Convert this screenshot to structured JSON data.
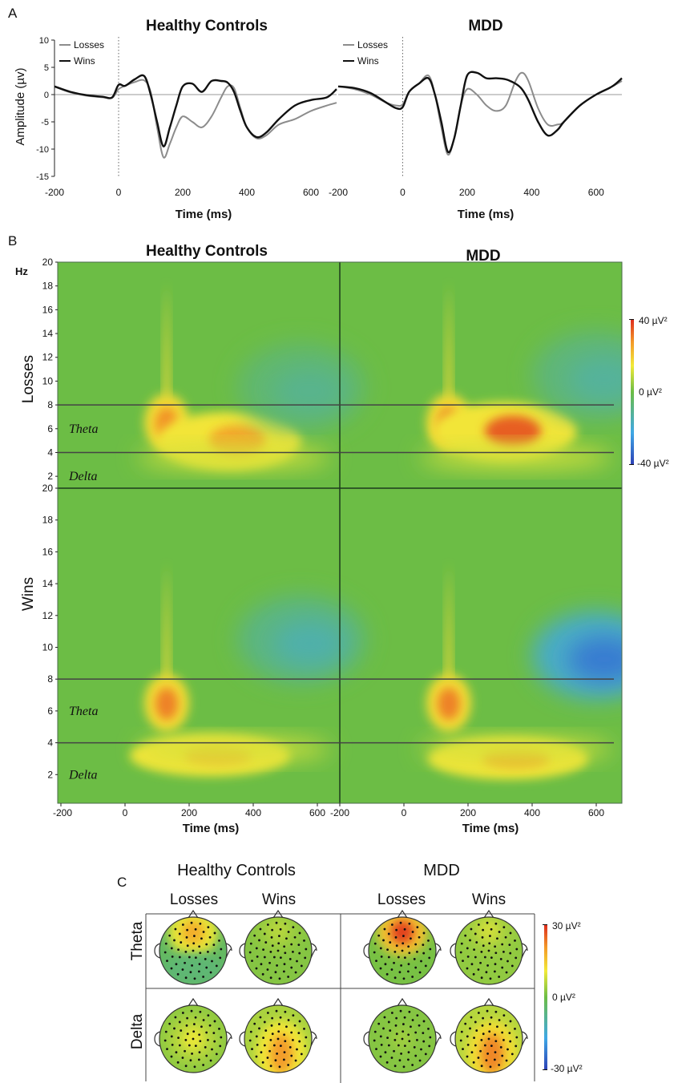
{
  "figure": {
    "panel_a_label": "A",
    "panel_b_label": "B",
    "panel_c_label": "C"
  },
  "chart_data": [
    {
      "type": "line",
      "panel": "A",
      "title": "Healthy Controls",
      "xlabel": "Time (ms)",
      "ylabel": "Amplitude (µv)",
      "xlim": [
        -200,
        680
      ],
      "ylim": [
        -15,
        10
      ],
      "x_ticks": [
        "-200",
        "0",
        "200",
        "400",
        "600"
      ],
      "y_ticks": [
        "10",
        "5",
        "0",
        "-5",
        "-10",
        "-15"
      ],
      "legend_position": "top-left",
      "series": [
        {
          "name": "Losses",
          "color": "#8c8c8c",
          "x": [
            -200,
            -150,
            -100,
            -50,
            -20,
            0,
            20,
            50,
            80,
            100,
            120,
            140,
            160,
            180,
            200,
            230,
            260,
            290,
            320,
            340,
            360,
            380,
            400,
            430,
            460,
            500,
            550,
            600,
            650,
            680
          ],
          "y": [
            1.5,
            0.4,
            -0.2,
            -0.5,
            -0.6,
            1.0,
            1.6,
            2.3,
            2.6,
            0.5,
            -6.0,
            -11.5,
            -9.0,
            -6.0,
            -4.0,
            -5.0,
            -6.0,
            -4.0,
            -0.5,
            1.5,
            1.2,
            -2.5,
            -6.0,
            -8.0,
            -7.5,
            -5.5,
            -4.5,
            -3.0,
            -2.0,
            -1.5
          ]
        },
        {
          "name": "Wins",
          "color": "#111111",
          "x": [
            -200,
            -150,
            -100,
            -50,
            -20,
            0,
            20,
            50,
            80,
            100,
            120,
            140,
            160,
            180,
            200,
            230,
            260,
            290,
            320,
            340,
            360,
            380,
            400,
            430,
            460,
            500,
            550,
            600,
            650,
            680
          ],
          "y": [
            1.5,
            0.5,
            -0.1,
            -0.4,
            -0.5,
            1.8,
            1.6,
            2.8,
            3.4,
            0.0,
            -5.0,
            -9.5,
            -6.0,
            -2.0,
            1.5,
            2.0,
            0.5,
            2.5,
            2.5,
            2.2,
            0.5,
            -3.0,
            -6.0,
            -7.8,
            -7.0,
            -4.5,
            -2.0,
            -1.0,
            -0.5,
            1.0
          ]
        }
      ]
    },
    {
      "type": "line",
      "panel": "A",
      "title": "MDD",
      "xlabel": "Time (ms)",
      "xlim": [
        -200,
        680
      ],
      "ylim": [
        -15,
        10
      ],
      "x_ticks": [
        "-200",
        "0",
        "200",
        "400",
        "600"
      ],
      "legend_position": "top-left",
      "series": [
        {
          "name": "Losses",
          "color": "#8c8c8c",
          "x": [
            -200,
            -150,
            -100,
            -50,
            -20,
            0,
            20,
            50,
            80,
            100,
            120,
            140,
            160,
            180,
            200,
            230,
            260,
            290,
            320,
            350,
            370,
            390,
            420,
            450,
            480,
            500,
            550,
            600,
            650,
            680
          ],
          "y": [
            1.5,
            1.0,
            0.0,
            -1.5,
            -2.0,
            -1.8,
            0.5,
            2.0,
            3.5,
            0.0,
            -6.0,
            -11.0,
            -8.0,
            -2.0,
            1.0,
            0.0,
            -2.0,
            -3.0,
            -2.0,
            2.5,
            4.0,
            2.5,
            -2.5,
            -5.5,
            -5.5,
            -5.0,
            -2.0,
            0.0,
            1.5,
            2.5
          ]
        },
        {
          "name": "Wins",
          "color": "#111111",
          "x": [
            -200,
            -150,
            -100,
            -50,
            -20,
            0,
            20,
            50,
            80,
            100,
            120,
            140,
            160,
            180,
            200,
            230,
            260,
            290,
            320,
            350,
            370,
            390,
            420,
            450,
            480,
            500,
            550,
            600,
            650,
            680
          ],
          "y": [
            1.5,
            1.2,
            0.3,
            -1.5,
            -2.5,
            -2.3,
            0.5,
            2.0,
            3.0,
            0.0,
            -5.0,
            -10.5,
            -8.0,
            -2.0,
            3.5,
            4.0,
            3.0,
            3.0,
            2.8,
            2.0,
            1.0,
            -1.0,
            -5.0,
            -7.5,
            -6.5,
            -5.0,
            -2.0,
            0.0,
            1.5,
            3.0
          ]
        }
      ]
    },
    {
      "type": "heatmap",
      "panel": "B",
      "columns": [
        "Healthy Controls",
        "MDD"
      ],
      "rows": [
        "Losses",
        "Wins"
      ],
      "xlabel": "Time (ms)",
      "ylabel_unit": "Hz",
      "xlim": [
        -200,
        680
      ],
      "ylim": [
        1,
        20
      ],
      "x_ticks": [
        "-200",
        "0",
        "200",
        "400",
        "600"
      ],
      "y_ticks": [
        "20",
        "18",
        "16",
        "14",
        "12",
        "10",
        "8",
        "6",
        "4",
        "2"
      ],
      "band_lines_hz": [
        8,
        4
      ],
      "band_labels": [
        "Theta",
        "Delta"
      ],
      "colorbar": {
        "max": "40 µV²",
        "mid": "0 µV²",
        "min": "-40 µV²",
        "range": [
          -40,
          40
        ]
      },
      "peaks_uv2": [
        {
          "group": "Healthy Controls",
          "condition": "Losses",
          "time_ms": 140,
          "hz": 6.5,
          "value": 28
        },
        {
          "group": "Healthy Controls",
          "condition": "Losses",
          "time_ms": 360,
          "hz": 5.0,
          "value": 25
        },
        {
          "group": "Healthy Controls",
          "condition": "Losses",
          "time_ms": 560,
          "hz": 9.5,
          "value": -10
        },
        {
          "group": "MDD",
          "condition": "Losses",
          "time_ms": 140,
          "hz": 6.5,
          "value": 30
        },
        {
          "group": "MDD",
          "condition": "Losses",
          "time_ms": 340,
          "hz": 5.8,
          "value": 34
        },
        {
          "group": "MDD",
          "condition": "Losses",
          "time_ms": 600,
          "hz": 10.5,
          "value": -12
        },
        {
          "group": "Healthy Controls",
          "condition": "Wins",
          "time_ms": 140,
          "hz": 6.5,
          "value": 30
        },
        {
          "group": "Healthy Controls",
          "condition": "Wins",
          "time_ms": 300,
          "hz": 3.2,
          "value": 22
        },
        {
          "group": "Healthy Controls",
          "condition": "Wins",
          "time_ms": 560,
          "hz": 10.5,
          "value": -14
        },
        {
          "group": "MDD",
          "condition": "Wins",
          "time_ms": 140,
          "hz": 6.5,
          "value": 30
        },
        {
          "group": "MDD",
          "condition": "Wins",
          "time_ms": 350,
          "hz": 3.0,
          "value": 24
        },
        {
          "group": "MDD",
          "condition": "Wins",
          "time_ms": 600,
          "hz": 9.5,
          "value": -30
        }
      ]
    },
    {
      "type": "heatmap",
      "panel": "C",
      "subtype": "scalp topography",
      "groups": [
        "Healthy Controls",
        "MDD"
      ],
      "conditions": [
        "Losses",
        "Wins"
      ],
      "bands": [
        "Theta",
        "Delta"
      ],
      "colorbar": {
        "max": "30 µV²",
        "mid": "0 µV²",
        "min": "-30 µV²",
        "range": [
          -30,
          30
        ]
      },
      "maps": [
        {
          "group": "Healthy Controls",
          "condition": "Losses",
          "band": "Theta",
          "peak_value": 18,
          "peak_location": "frontal-central",
          "background_value": -3
        },
        {
          "group": "Healthy Controls",
          "condition": "Wins",
          "band": "Theta",
          "peak_value": 6,
          "peak_location": "frontal",
          "background_value": 2
        },
        {
          "group": "MDD",
          "condition": "Losses",
          "band": "Theta",
          "peak_value": 28,
          "peak_location": "frontal-central",
          "background_value": 1
        },
        {
          "group": "MDD",
          "condition": "Wins",
          "band": "Theta",
          "peak_value": 8,
          "peak_location": "frontal",
          "background_value": 3
        },
        {
          "group": "Healthy Controls",
          "condition": "Losses",
          "band": "Delta",
          "peak_value": 10,
          "peak_location": "central",
          "background_value": 3
        },
        {
          "group": "Healthy Controls",
          "condition": "Wins",
          "band": "Delta",
          "peak_value": 20,
          "peak_location": "central-parietal",
          "background_value": 5
        },
        {
          "group": "MDD",
          "condition": "Losses",
          "band": "Delta",
          "peak_value": 4,
          "peak_location": "central",
          "background_value": 2
        },
        {
          "group": "MDD",
          "condition": "Wins",
          "band": "Delta",
          "peak_value": 22,
          "peak_location": "central-parietal",
          "background_value": 6
        }
      ]
    }
  ]
}
